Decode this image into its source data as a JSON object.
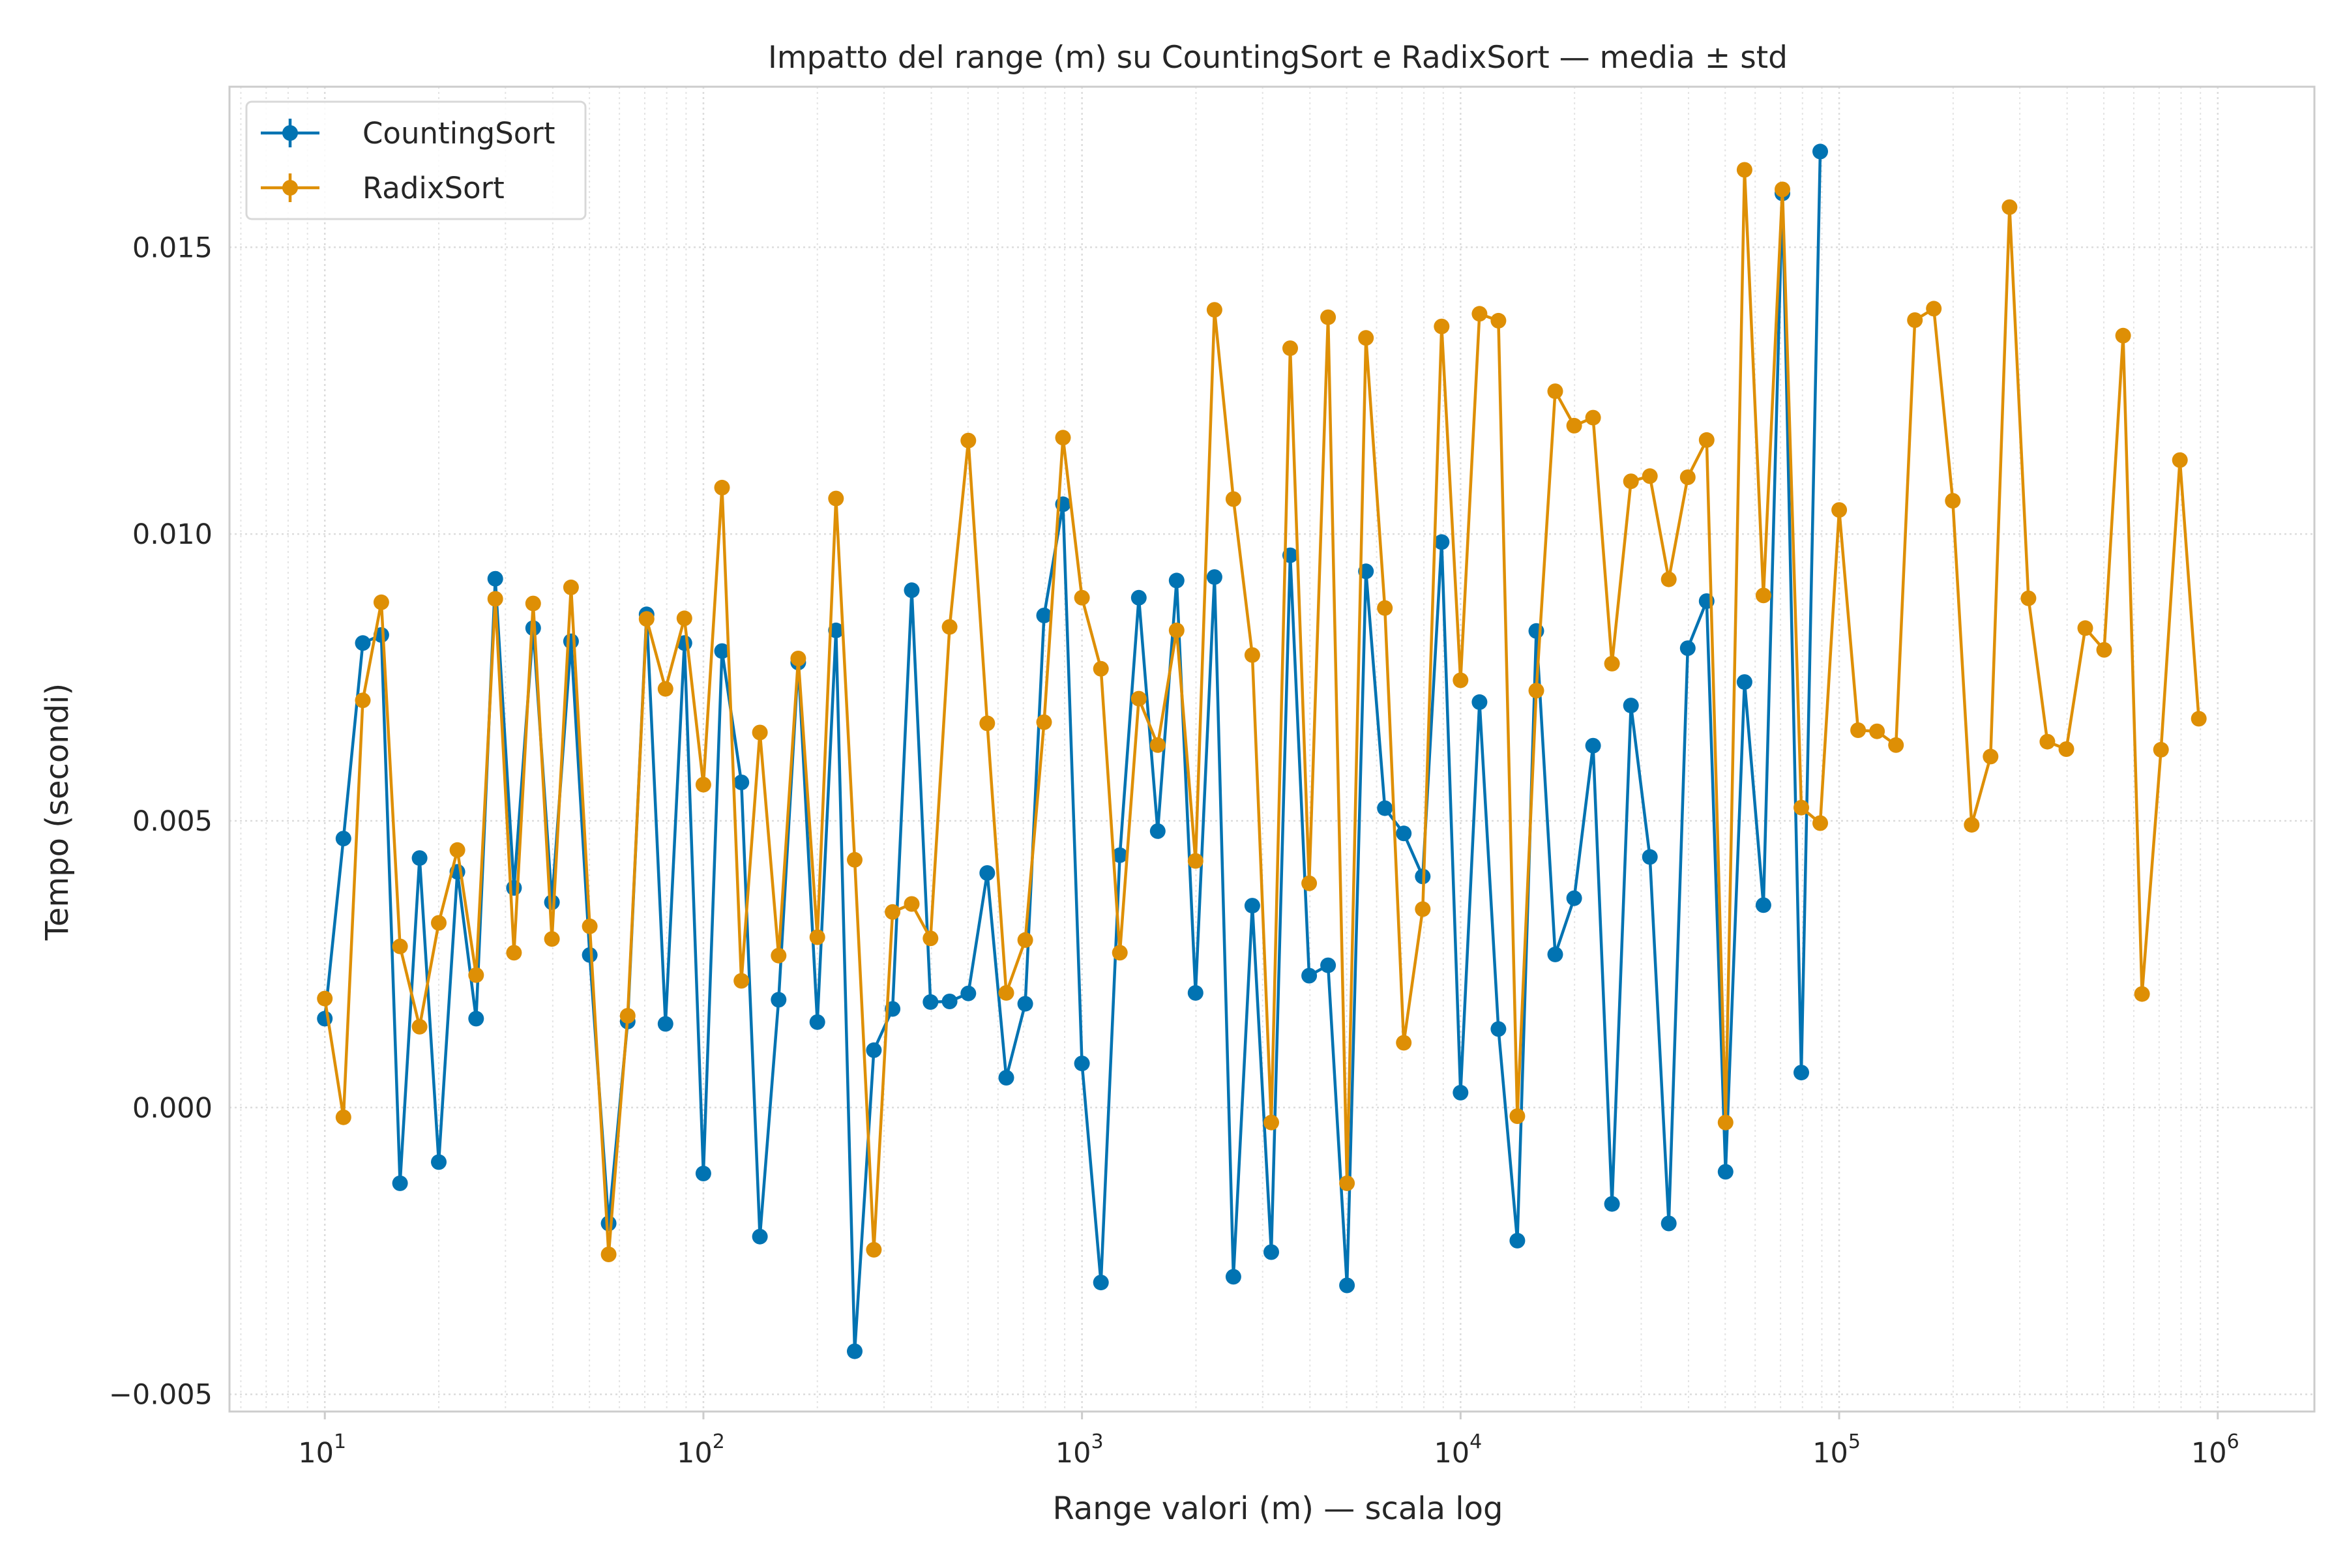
{
  "chart_data": {
    "type": "line",
    "title": "Impatto del range (m) su CountingSort e RadixSort — media ± std",
    "xlabel": "Range valori (m) — scala log",
    "ylabel": "Tempo (secondi)",
    "xscale": "log",
    "xlim": [
      5.6,
      1800000
    ],
    "ylim": [
      -0.0053,
      0.0178
    ],
    "grid": true,
    "legend_position": "top-left",
    "y_ticks": [
      -0.005,
      0.0,
      0.005,
      0.01,
      0.015
    ],
    "y_tick_labels": [
      "−0.005",
      "0.000",
      "0.005",
      "0.010",
      "0.015"
    ],
    "x_ticks": [
      {
        "value": 10,
        "base": "10",
        "exp": "1"
      },
      {
        "value": 100,
        "base": "10",
        "exp": "2"
      },
      {
        "value": 1000,
        "base": "10",
        "exp": "3"
      },
      {
        "value": 10000,
        "base": "10",
        "exp": "4"
      },
      {
        "value": 100000,
        "base": "10",
        "exp": "5"
      },
      {
        "value": 1000000,
        "base": "10",
        "exp": "6"
      }
    ],
    "series": [
      {
        "name": "CountingSort",
        "color": "#0173b2",
        "points": [
          [
            10.0,
            0.00155
          ],
          [
            11.2,
            0.00469
          ],
          [
            12.6,
            0.0081
          ],
          [
            14.1,
            0.00824
          ],
          [
            15.8,
            -0.00132
          ],
          [
            17.8,
            0.00435
          ],
          [
            20.0,
            -0.00095
          ],
          [
            22.4,
            0.00411
          ],
          [
            25.1,
            0.00155
          ],
          [
            28.2,
            0.00922
          ],
          [
            31.6,
            0.00383
          ],
          [
            35.5,
            0.00836
          ],
          [
            39.8,
            0.00358
          ],
          [
            44.7,
            0.00813
          ],
          [
            50.1,
            0.00266
          ],
          [
            56.2,
            -0.00202
          ],
          [
            63.1,
            0.0015
          ],
          [
            70.8,
            0.0086
          ],
          [
            79.4,
            0.00146
          ],
          [
            89.1,
            0.0081
          ],
          [
            100,
            -0.00115
          ],
          [
            112,
            0.00796
          ],
          [
            126,
            0.00567
          ],
          [
            141,
            -0.00225
          ],
          [
            158,
            0.00188
          ],
          [
            178,
            0.00776
          ],
          [
            200,
            0.00149
          ],
          [
            224,
            0.00832
          ],
          [
            251,
            -0.00425
          ],
          [
            282,
            0.001
          ],
          [
            316,
            0.00172
          ],
          [
            355,
            0.00902
          ],
          [
            398,
            0.00184
          ],
          [
            447,
            0.00185
          ],
          [
            501,
            0.00199
          ],
          [
            562,
            0.00409
          ],
          [
            631,
            0.00052
          ],
          [
            708,
            0.00181
          ],
          [
            794,
            0.00858
          ],
          [
            891,
            0.01052
          ],
          [
            1000,
            0.00077
          ],
          [
            1122,
            -0.00305
          ],
          [
            1259,
            0.0044
          ],
          [
            1413,
            0.00889
          ],
          [
            1585,
            0.00482
          ],
          [
            1778,
            0.00919
          ],
          [
            1995,
            0.002
          ],
          [
            2239,
            0.00925
          ],
          [
            2512,
            -0.00295
          ],
          [
            2818,
            0.00352
          ],
          [
            3162,
            -0.00252
          ],
          [
            3548,
            0.00963
          ],
          [
            3981,
            0.0023
          ],
          [
            4467,
            0.00248
          ],
          [
            5012,
            -0.0031
          ],
          [
            5623,
            0.00935
          ],
          [
            6310,
            0.00522
          ],
          [
            7079,
            0.00478
          ],
          [
            7943,
            0.00403
          ],
          [
            8913,
            0.00986
          ],
          [
            10000,
            0.00026
          ],
          [
            11220,
            0.00707
          ],
          [
            12589,
            0.00137
          ],
          [
            14125,
            -0.00232
          ],
          [
            15849,
            0.00831
          ],
          [
            17783,
            0.00267
          ],
          [
            19953,
            0.00365
          ],
          [
            22387,
            0.00631
          ],
          [
            25119,
            -0.00168
          ],
          [
            28184,
            0.00701
          ],
          [
            31623,
            0.00437
          ],
          [
            35481,
            -0.00202
          ],
          [
            39811,
            0.00801
          ],
          [
            44668,
            0.00883
          ],
          [
            50119,
            -0.00112
          ],
          [
            56234,
            0.00742
          ],
          [
            63096,
            0.00353
          ],
          [
            70795,
            0.01594
          ],
          [
            79433,
            0.00061
          ],
          [
            89125,
            0.01667
          ]
        ]
      },
      {
        "name": "RadixSort",
        "color": "#de8f05",
        "points": [
          [
            10.0,
            0.0019
          ],
          [
            11.2,
            -0.00017
          ],
          [
            12.6,
            0.0071
          ],
          [
            14.1,
            0.00881
          ],
          [
            15.8,
            0.00281
          ],
          [
            17.8,
            0.00141
          ],
          [
            20.0,
            0.00322
          ],
          [
            22.4,
            0.00449
          ],
          [
            25.1,
            0.00231
          ],
          [
            28.2,
            0.00887
          ],
          [
            31.6,
            0.0027
          ],
          [
            35.5,
            0.00879
          ],
          [
            39.8,
            0.00294
          ],
          [
            44.7,
            0.00907
          ],
          [
            50.1,
            0.00316
          ],
          [
            56.2,
            -0.00256
          ],
          [
            63.1,
            0.0016
          ],
          [
            70.8,
            0.00852
          ],
          [
            79.4,
            0.0073
          ],
          [
            89.1,
            0.00853
          ],
          [
            100,
            0.00563
          ],
          [
            112,
            0.01081
          ],
          [
            126,
            0.00221
          ],
          [
            141,
            0.00654
          ],
          [
            158,
            0.00265
          ],
          [
            178,
            0.00783
          ],
          [
            200,
            0.00297
          ],
          [
            224,
            0.01062
          ],
          [
            251,
            0.00432
          ],
          [
            282,
            -0.00248
          ],
          [
            316,
            0.00341
          ],
          [
            355,
            0.00355
          ],
          [
            398,
            0.00295
          ],
          [
            447,
            0.00838
          ],
          [
            501,
            0.01163
          ],
          [
            562,
            0.0067
          ],
          [
            631,
            0.002
          ],
          [
            708,
            0.00292
          ],
          [
            794,
            0.00672
          ],
          [
            891,
            0.01168
          ],
          [
            1000,
            0.00889
          ],
          [
            1122,
            0.00765
          ],
          [
            1259,
            0.0027
          ],
          [
            1413,
            0.00713
          ],
          [
            1585,
            0.00632
          ],
          [
            1778,
            0.00832
          ],
          [
            1995,
            0.0043
          ],
          [
            2239,
            0.01391
          ],
          [
            2512,
            0.01061
          ],
          [
            2818,
            0.00789
          ],
          [
            3162,
            -0.00026
          ],
          [
            3548,
            0.01324
          ],
          [
            3981,
            0.00391
          ],
          [
            4467,
            0.01378
          ],
          [
            5012,
            -0.00132
          ],
          [
            5623,
            0.01342
          ],
          [
            6310,
            0.00871
          ],
          [
            7079,
            0.00113
          ],
          [
            7943,
            0.00346
          ],
          [
            8913,
            0.01362
          ],
          [
            10000,
            0.00745
          ],
          [
            11220,
            0.01384
          ],
          [
            12589,
            0.01372
          ],
          [
            14125,
            -0.00015
          ],
          [
            15849,
            0.00727
          ],
          [
            17783,
            0.01249
          ],
          [
            19953,
            0.01189
          ],
          [
            22387,
            0.01203
          ],
          [
            25119,
            0.00774
          ],
          [
            28184,
            0.01092
          ],
          [
            31623,
            0.01101
          ],
          [
            35481,
            0.00921
          ],
          [
            39811,
            0.01099
          ],
          [
            44668,
            0.01164
          ],
          [
            50119,
            -0.00026
          ],
          [
            56234,
            0.01635
          ],
          [
            63096,
            0.00893
          ],
          [
            70795,
            0.01601
          ],
          [
            79433,
            0.00523
          ],
          [
            89125,
            0.00496
          ],
          [
            100000,
            0.01042
          ],
          [
            112202,
            0.00658
          ],
          [
            125893,
            0.00656
          ],
          [
            141254,
            0.00632
          ],
          [
            158489,
            0.01373
          ],
          [
            177828,
            0.01393
          ],
          [
            199526,
            0.01058
          ],
          [
            223872,
            0.00493
          ],
          [
            251189,
            0.00612
          ],
          [
            281838,
            0.0157
          ],
          [
            316228,
            0.00888
          ],
          [
            354813,
            0.00638
          ],
          [
            398107,
            0.00625
          ],
          [
            446684,
            0.00836
          ],
          [
            501187,
            0.00798
          ],
          [
            562341,
            0.01346
          ],
          [
            630957,
            0.00198
          ],
          [
            707946,
            0.00624
          ],
          [
            794328,
            0.01129
          ],
          [
            891251,
            0.00678
          ]
        ]
      }
    ]
  }
}
